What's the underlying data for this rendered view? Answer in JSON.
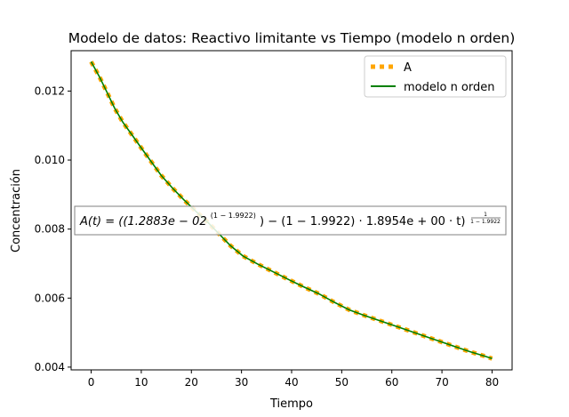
{
  "chart_data": {
    "type": "line",
    "title": "Modelo de datos: Reactivo limitante vs Tiempo (modelo n orden)",
    "xlabel": "Tiempo",
    "ylabel": "Concentración",
    "xlim": [
      -4,
      84
    ],
    "ylim": [
      0.00392,
      0.01317
    ],
    "xticks": [
      0,
      10,
      20,
      30,
      40,
      50,
      60,
      70,
      80
    ],
    "yticks": [
      0.004,
      0.006,
      0.008,
      0.01,
      0.012
    ],
    "xtick_labels": [
      "0",
      "10",
      "20",
      "30",
      "40",
      "50",
      "60",
      "70",
      "80"
    ],
    "ytick_labels": [
      "0.004",
      "0.006",
      "0.008",
      "0.010",
      "0.012"
    ],
    "legend_position": "upper-right",
    "grid": false,
    "series": [
      {
        "name": "A",
        "style": "dotted",
        "color": "#ffa500",
        "x": [
          0,
          1.7,
          3.2,
          4.7,
          6.3,
          8.3,
          10.0,
          12.0,
          14.0,
          16.3,
          18.5,
          21.0,
          23.4,
          25.6,
          27.8,
          30.3,
          33.3,
          36.5,
          39.5,
          42.5,
          45.5,
          48.5,
          51.5,
          54.5,
          57.5,
          60.5,
          63.5,
          66.5,
          69.5,
          72.5,
          75.5,
          78.5,
          80
        ],
        "y": [
          0.01285,
          0.0124,
          0.01195,
          0.0115,
          0.0111,
          0.0107,
          0.01035,
          0.00995,
          0.00955,
          0.00918,
          0.00885,
          0.0085,
          0.00818,
          0.00785,
          0.00752,
          0.00722,
          0.00698,
          0.00675,
          0.00653,
          0.00632,
          0.00612,
          0.00588,
          0.00566,
          0.0055,
          0.00535,
          0.0052,
          0.00505,
          0.0049,
          0.00475,
          0.0046,
          0.00445,
          0.00432,
          0.00425
        ]
      },
      {
        "name": "modelo n orden",
        "style": "solid",
        "color": "#008000",
        "x": [
          0,
          1.7,
          3.2,
          4.7,
          6.3,
          8.3,
          10.0,
          12.0,
          14.0,
          16.3,
          18.5,
          21.0,
          23.4,
          25.6,
          27.8,
          30.3,
          33.3,
          36.5,
          39.5,
          42.5,
          45.5,
          48.5,
          51.5,
          54.5,
          57.5,
          60.5,
          63.5,
          66.5,
          69.5,
          72.5,
          75.5,
          78.5,
          80
        ],
        "y": [
          0.01285,
          0.0124,
          0.01195,
          0.0115,
          0.0111,
          0.0107,
          0.01035,
          0.00995,
          0.00955,
          0.00918,
          0.00885,
          0.0085,
          0.00818,
          0.00785,
          0.00752,
          0.00722,
          0.00698,
          0.00675,
          0.00653,
          0.00632,
          0.00612,
          0.00588,
          0.00566,
          0.0055,
          0.00535,
          0.0052,
          0.00505,
          0.0049,
          0.00475,
          0.0046,
          0.00445,
          0.00432,
          0.00425
        ]
      }
    ],
    "annotation": {
      "base": "A(t) = ((1.2883e − 02",
      "exponent": "(1 − 1.9922)",
      "middle": ") − (1 − 1.9922) · 1.8954e + 00 · t)",
      "outer_exponent_num": "1",
      "outer_exponent_den": "1 − 1.9922"
    }
  }
}
